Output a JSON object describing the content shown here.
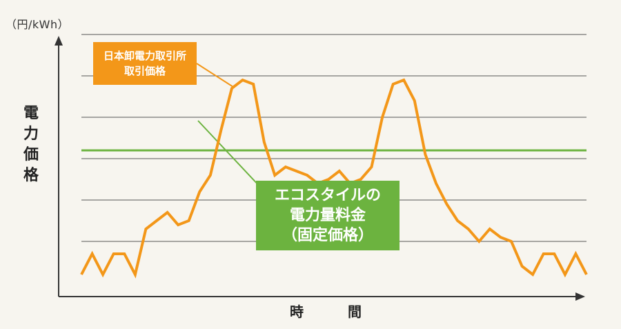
{
  "chart_data": {
    "type": "line",
    "unit_label": "（円/kWh）",
    "ylabel": "電力価格",
    "xlabel": "時　間",
    "grid": true,
    "colors": {
      "market": "#f39719",
      "fixed": "#6cb33f",
      "axis": "#333333",
      "grid": "#555555"
    },
    "series": [
      {
        "name": "日本卸電力取引所取引価格",
        "label_lines": [
          "日本卸電力取引所",
          "取引価格"
        ],
        "values": [
          0.2,
          0.7,
          0.2,
          0.7,
          0.7,
          0.2,
          1.3,
          1.5,
          1.7,
          1.4,
          1.5,
          2.2,
          2.6,
          3.7,
          4.7,
          4.9,
          4.8,
          3.4,
          2.6,
          2.8,
          2.7,
          2.6,
          2.4,
          2.5,
          2.7,
          2.4,
          2.5,
          2.8,
          4.0,
          4.8,
          4.9,
          4.4,
          3.1,
          2.4,
          1.9,
          1.5,
          1.3,
          1.0,
          1.3,
          1.1,
          1.0,
          0.4,
          0.2,
          0.7,
          0.7,
          0.2,
          0.7,
          0.2
        ]
      },
      {
        "name": "エコスタイルの電力量料金（固定価格）",
        "label_lines": [
          "エコスタイルの",
          "電力量料金",
          "（固定価格）"
        ],
        "values": [
          3.2,
          3.2
        ]
      }
    ],
    "ylim": [
      0,
      6
    ]
  }
}
